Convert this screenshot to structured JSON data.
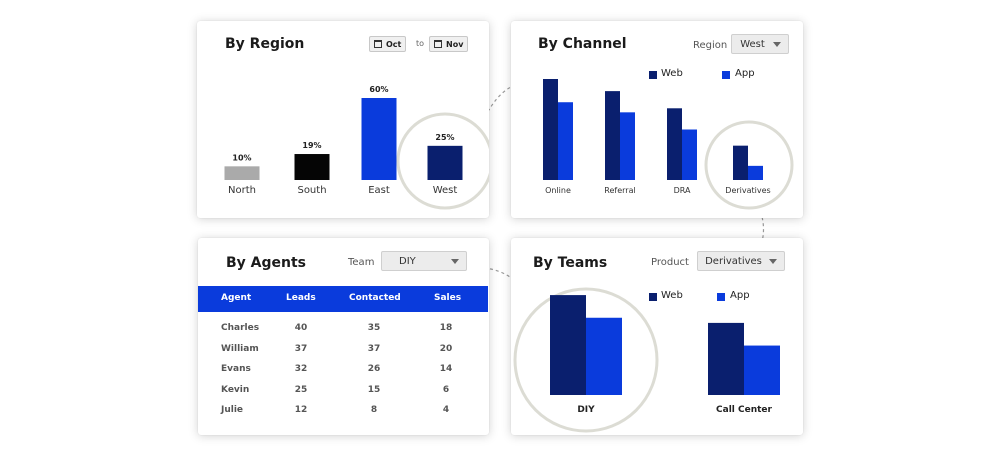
{
  "colors": {
    "dark_navy": "#0a1f6e",
    "blue": "#0a3bdc",
    "black": "#050505",
    "gray": "#aaaaaa",
    "header_blue": "#0a3bdc"
  },
  "region": {
    "title": "By Region",
    "date_from": "Oct",
    "date_to_label": "to",
    "date_to": "Nov",
    "calendar_icon": "calendar-icon"
  },
  "channel": {
    "title": "By Channel",
    "filter_label": "Region",
    "filter_value": "West",
    "legend": [
      "Web",
      "App"
    ]
  },
  "agents": {
    "title": "By Agents",
    "filter_label": "Team",
    "filter_value": "DIY",
    "columns": [
      "Agent",
      "Leads",
      "Contacted",
      "Sales"
    ],
    "rows": [
      [
        "Charles",
        "40",
        "35",
        "18"
      ],
      [
        "William",
        "37",
        "37",
        "20"
      ],
      [
        "Evans",
        "32",
        "26",
        "14"
      ],
      [
        "Kevin",
        "25",
        "15",
        "6"
      ],
      [
        "Julie",
        "12",
        "8",
        "4"
      ]
    ]
  },
  "teams": {
    "title": "By Teams",
    "filter_label": "Product",
    "filter_value": "Derivatives",
    "legend": [
      "Web",
      "App"
    ]
  },
  "chart_data": [
    {
      "type": "bar",
      "title": "By Region",
      "categories": [
        "North",
        "South",
        "East",
        "West"
      ],
      "values": [
        10,
        19,
        60,
        25
      ],
      "data_labels": [
        "10%",
        "19%",
        "60%",
        "25%"
      ],
      "ylim": [
        0,
        60
      ],
      "colors": [
        "#aaaaaa",
        "#050505",
        "#0a3bdc",
        "#0a1f6e"
      ],
      "highlight": "West"
    },
    {
      "type": "bar",
      "title": "By Channel",
      "categories": [
        "Online",
        "Referral",
        "DRA",
        "Derivatives"
      ],
      "series": [
        {
          "name": "Web",
          "values": [
            100,
            88,
            71,
            34
          ],
          "color": "#0a1f6e"
        },
        {
          "name": "App",
          "values": [
            77,
            67,
            50,
            14
          ],
          "color": "#0a3bdc"
        }
      ],
      "ylim": [
        0,
        100
      ],
      "legend": "top",
      "highlight": "Derivatives"
    },
    {
      "type": "bar",
      "title": "By Teams",
      "categories": [
        "DIY",
        "Call Center"
      ],
      "series": [
        {
          "name": "Web",
          "values": [
            97,
            70
          ],
          "color": "#0a1f6e"
        },
        {
          "name": "App",
          "values": [
            75,
            48
          ],
          "color": "#0a3bdc"
        }
      ],
      "ylim": [
        0,
        100
      ],
      "legend": "top",
      "highlight": "DIY"
    }
  ]
}
